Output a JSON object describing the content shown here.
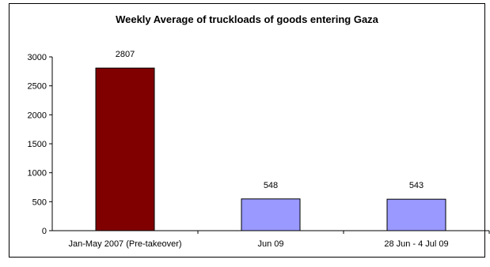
{
  "chart_data": {
    "type": "bar",
    "title": "Weekly Average of truckloads of goods entering Gaza",
    "categories": [
      "Jan-May 2007 (Pre-takeover)",
      "Jun 09",
      "28 Jun - 4 Jul 09"
    ],
    "values": [
      2807,
      548,
      543
    ],
    "bar_colors": [
      "#800000",
      "#9999ff",
      "#9999ff"
    ],
    "data_labels": [
      "2807",
      "548",
      "543"
    ],
    "ylim": [
      0,
      3000
    ],
    "yticks": [
      "0",
      "500",
      "1000",
      "1500",
      "2000",
      "2500",
      "3000"
    ],
    "xlabel": "",
    "ylabel": "",
    "grid": false,
    "legend": "none"
  }
}
